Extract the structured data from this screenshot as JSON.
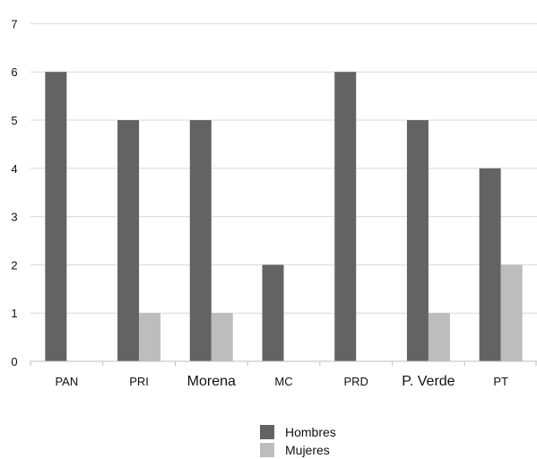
{
  "chart_data": {
    "type": "bar",
    "categories": [
      "PAN",
      "PRI",
      "Morena",
      "MC",
      "PRD",
      "P. Verde",
      "PT"
    ],
    "series": [
      {
        "name": "Hombres",
        "values": [
          6,
          5,
          5,
          2,
          6,
          5,
          4
        ],
        "color": "#636363"
      },
      {
        "name": "Mujeres",
        "values": [
          0,
          1,
          1,
          0,
          0,
          1,
          2
        ],
        "color": "#bdbdbd"
      }
    ],
    "yticks": [
      0,
      1,
      2,
      3,
      4,
      5,
      6,
      7
    ],
    "ylim": [
      0,
      7
    ],
    "grid": true,
    "legend_position": "bottom-center"
  }
}
